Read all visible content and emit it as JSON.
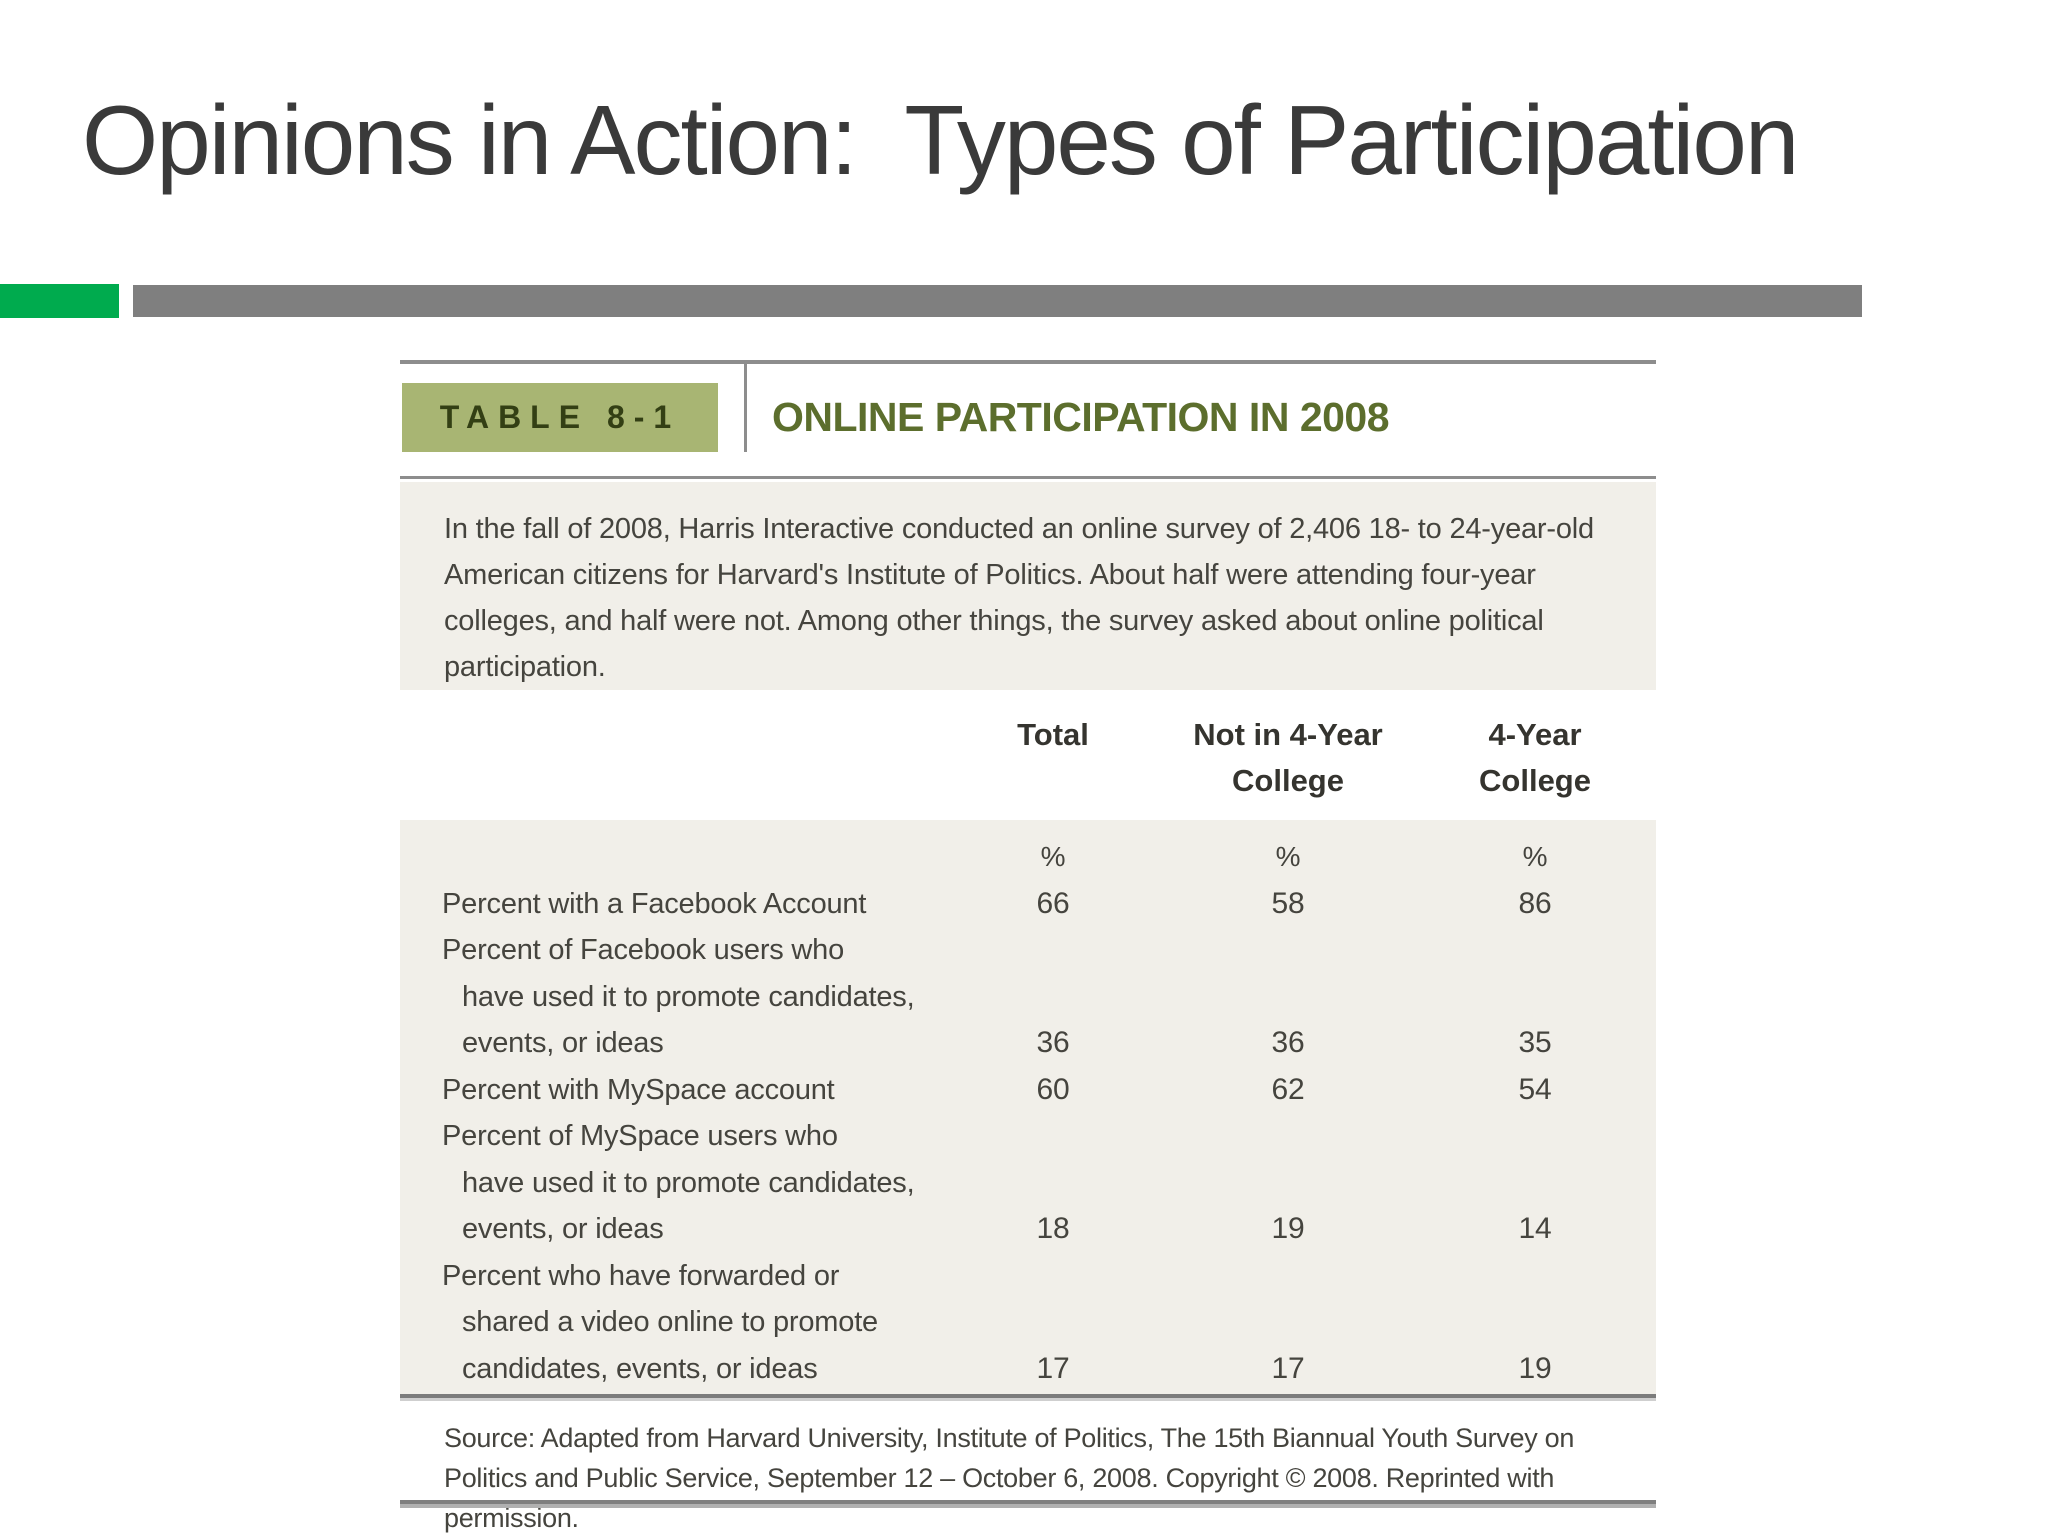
{
  "title": "Opinions in Action:  Types of Participation",
  "accent_colors": {
    "green_square": "#00ab4e",
    "gray_bar": "#7f7f7f"
  },
  "figure": {
    "table_label": "TABLE 8-1",
    "title": "ONLINE PARTICIPATION IN 2008",
    "tag_bg_color": "#a8b573",
    "title_color": "#5c6e2d",
    "body_bg_color": "#f1efe9",
    "intro": "In the fall of 2008, Harris Interactive conducted an online survey of 2,406 18- to 24-year-old American citizens for Harvard's Institute of Politics. About half were attending four-year colleges, and half were not. Among other things, the survey asked about online political participation.",
    "columns": [
      "Total",
      "Not in 4-Year\nCollege",
      "4-Year\nCollege"
    ],
    "unit_row": [
      "%",
      "%",
      "%"
    ],
    "rows": [
      {
        "lines": [
          "Percent with a Facebook Account"
        ],
        "values": [
          "66",
          "58",
          "86"
        ]
      },
      {
        "lines": [
          "Percent of Facebook users who",
          "have used it to promote candidates,",
          "events, or ideas"
        ],
        "values": [
          "36",
          "36",
          "35"
        ]
      },
      {
        "lines": [
          "Percent with MySpace account"
        ],
        "values": [
          "60",
          "62",
          "54"
        ]
      },
      {
        "lines": [
          "Percent of MySpace users who",
          "have used it to promote candidates,",
          "events, or ideas"
        ],
        "values": [
          "18",
          "19",
          "14"
        ]
      },
      {
        "lines": [
          "Percent who have forwarded or",
          "shared a video online to promote",
          "candidates, events, or ideas"
        ],
        "values": [
          "17",
          "17",
          "19"
        ]
      }
    ],
    "source": "Source: Adapted from Harvard University, Institute of Politics, The 15th Biannual Youth Survey on Politics and Public Service, September 12 – October 6, 2008. Copyright © 2008. Reprinted with permission."
  },
  "chart_data": {
    "type": "table",
    "title": "ONLINE PARTICIPATION IN 2008",
    "categories": [
      "Total",
      "Not in 4-Year College",
      "4-Year College"
    ],
    "series": [
      {
        "name": "Percent with a Facebook Account",
        "values": [
          66,
          58,
          86
        ]
      },
      {
        "name": "Percent of Facebook users who have used it to promote candidates, events, or ideas",
        "values": [
          36,
          36,
          35
        ]
      },
      {
        "name": "Percent with MySpace account",
        "values": [
          60,
          62,
          54
        ]
      },
      {
        "name": "Percent of MySpace users who have used it to promote candidates, events, or ideas",
        "values": [
          18,
          19,
          14
        ]
      },
      {
        "name": "Percent who have forwarded or shared a video online to promote candidates, events, or ideas",
        "values": [
          17,
          17,
          19
        ]
      }
    ],
    "unit": "%"
  }
}
